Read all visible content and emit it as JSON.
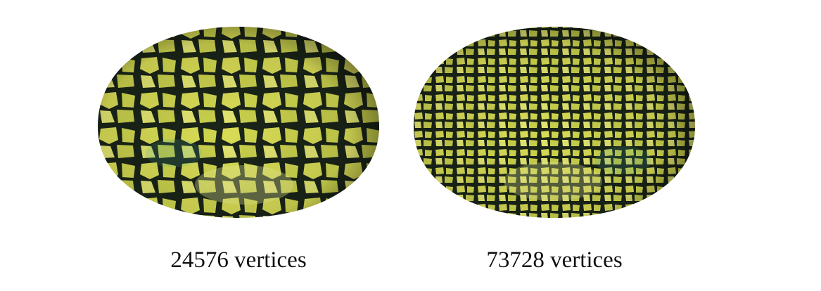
{
  "figures": [
    {
      "caption": "24576 vertices",
      "cell_density": "coarse"
    },
    {
      "caption": "73728 vertices",
      "cell_density": "fine"
    }
  ],
  "colors": {
    "background": "#ffffff",
    "cell_fill": "#d8dc55",
    "cell_highlight": "#eef29a",
    "cell_border": "#1a2418",
    "teal_edge": "#4fb39a",
    "caption_text": "#111111"
  }
}
